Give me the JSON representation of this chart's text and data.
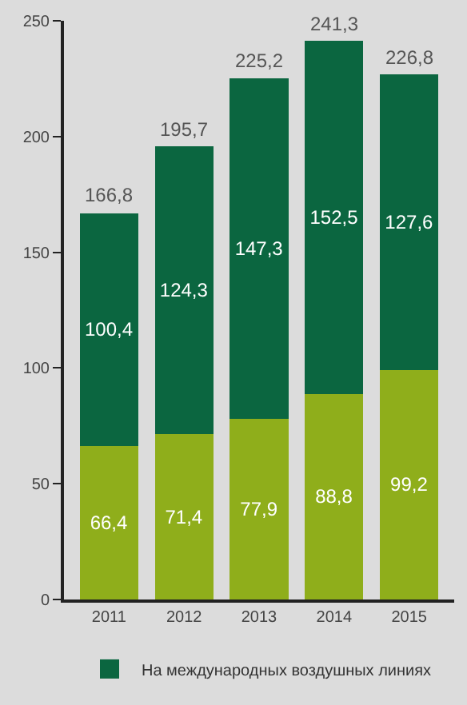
{
  "chart_data": {
    "type": "bar",
    "stacked": true,
    "categories": [
      "2011",
      "2012",
      "2013",
      "2014",
      "2015"
    ],
    "series": [
      {
        "color": "#8fae1b",
        "values": [
          66.4,
          71.4,
          77.9,
          88.8,
          99.2
        ],
        "value_labels": [
          "66,4",
          "71,4",
          "77,9",
          "88,8",
          "99,2"
        ]
      },
      {
        "name": "На международных воздушных линиях",
        "color": "#0b6640",
        "values": [
          100.4,
          124.3,
          147.3,
          152.5,
          127.6
        ],
        "value_labels": [
          "100,4",
          "124,3",
          "147,3",
          "152,5",
          "127,6"
        ]
      }
    ],
    "totals": [
      "166,8",
      "195,7",
      "225,2",
      "241,3",
      "226,8"
    ],
    "ylim": [
      0,
      250
    ],
    "yticks": [
      0,
      50,
      100,
      150,
      200,
      250
    ],
    "grid": false,
    "legend": "bottom"
  }
}
